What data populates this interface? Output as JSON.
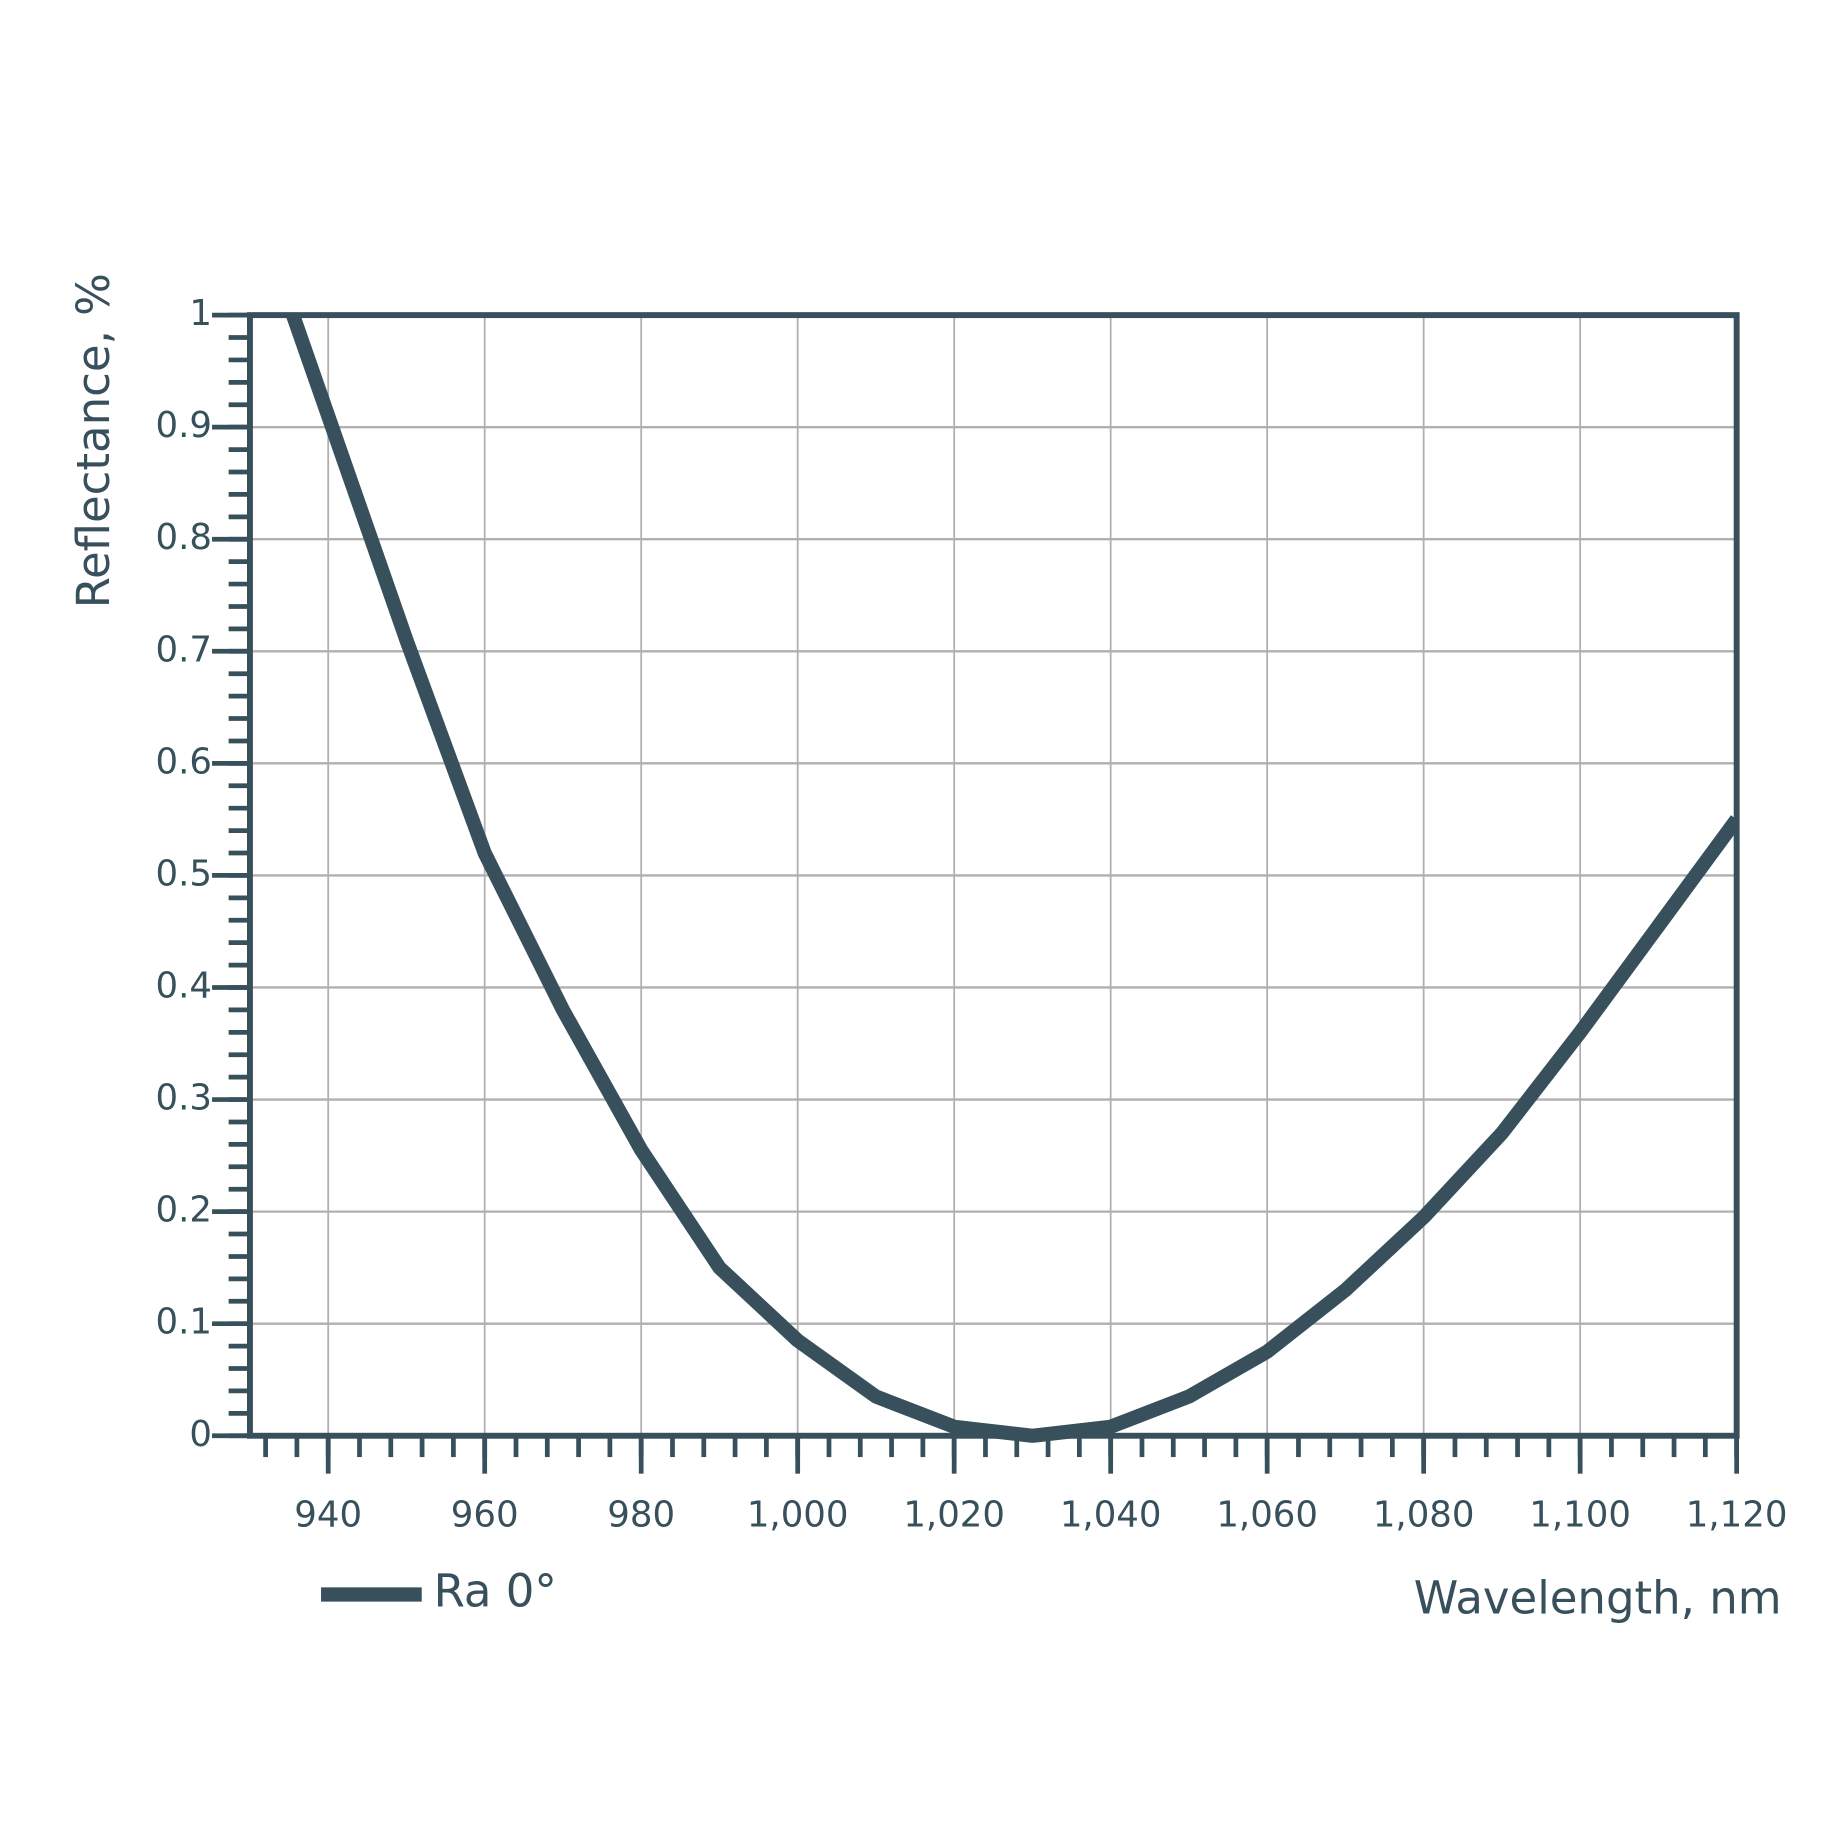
{
  "chart_data": {
    "type": "line",
    "x_label": "Wavelength, nm",
    "y_label": "Reflectance, %",
    "x": [
      935.5,
      940,
      950,
      960,
      970,
      980,
      990,
      1000,
      1010,
      1020,
      1030,
      1040,
      1050,
      1060,
      1070,
      1080,
      1090,
      1100,
      1110,
      1120
    ],
    "series": [
      {
        "name": "Ra 0°",
        "color": "#37505c",
        "values": [
          1.0,
          0.91,
          0.71,
          0.52,
          0.38,
          0.255,
          0.15,
          0.085,
          0.035,
          0.008,
          0,
          0.008,
          0.035,
          0.075,
          0.13,
          0.195,
          0.27,
          0.36,
          0.455,
          0.55
        ]
      }
    ],
    "xlim": [
      930,
      1120
    ],
    "xticks": [
      940,
      960,
      980,
      {
        "value": 1000,
        "label": "1,000"
      },
      {
        "value": 1020,
        "label": "1,020"
      },
      {
        "value": 1040,
        "label": "1,040"
      },
      {
        "value": 1060,
        "label": "1,060"
      },
      {
        "value": 1080,
        "label": "1,080"
      },
      {
        "value": 1100,
        "label": "1,100"
      },
      {
        "value": 1120,
        "label": "1,120"
      }
    ],
    "ylim": [
      0,
      1
    ],
    "yticks": [
      0,
      0.1,
      0.2,
      0.3,
      0.4,
      0.5,
      0.6,
      0.7,
      0.8,
      0.9,
      1
    ],
    "grid": true,
    "legend": "bottom-left"
  }
}
